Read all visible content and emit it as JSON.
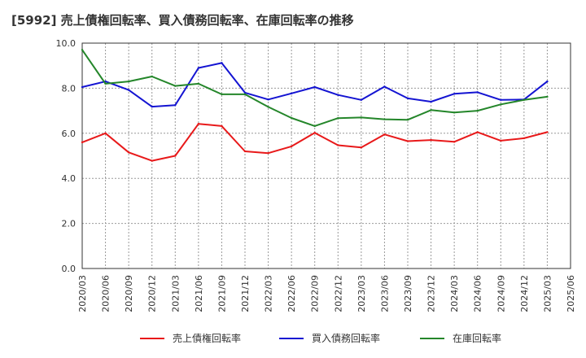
{
  "chart_data": {
    "type": "line",
    "title": "[5992]  売上債権回転率、買入債務回転率、在庫回転率の推移",
    "xlabel": "",
    "ylabel": "",
    "ylim": [
      0,
      10
    ],
    "yticks": [
      "0.0",
      "2.0",
      "4.0",
      "6.0",
      "8.0",
      "10.0"
    ],
    "grid": true,
    "legend_position": "bottom",
    "categories": [
      "2020/03",
      "2020/06",
      "2020/09",
      "2020/12",
      "2021/03",
      "2021/06",
      "2021/09",
      "2021/12",
      "2022/03",
      "2022/06",
      "2022/09",
      "2022/12",
      "2023/03",
      "2023/06",
      "2023/09",
      "2023/12",
      "2024/03",
      "2024/06",
      "2024/09",
      "2024/12",
      "2025/03",
      "2025/06"
    ],
    "series": [
      {
        "name": "売上債権回転率",
        "color": "#e8191a",
        "values": [
          5.6,
          6.0,
          5.15,
          4.78,
          5.0,
          6.42,
          6.32,
          5.2,
          5.12,
          5.42,
          6.02,
          5.47,
          5.37,
          5.95,
          5.65,
          5.7,
          5.62,
          6.05,
          5.67,
          5.78,
          6.05,
          null
        ]
      },
      {
        "name": "買入債務回転率",
        "color": "#1414d2",
        "values": [
          8.05,
          8.3,
          7.92,
          7.18,
          7.25,
          8.9,
          9.12,
          7.8,
          7.5,
          7.77,
          8.05,
          7.7,
          7.48,
          8.07,
          7.55,
          7.4,
          7.75,
          7.82,
          7.48,
          7.5,
          8.3,
          null
        ]
      },
      {
        "name": "在庫回転率",
        "color": "#24862a",
        "values": [
          9.7,
          8.2,
          8.3,
          8.52,
          8.1,
          8.2,
          7.73,
          7.73,
          7.17,
          6.68,
          6.32,
          6.67,
          6.7,
          6.62,
          6.6,
          7.03,
          6.92,
          7.0,
          7.28,
          7.48,
          7.62,
          null
        ]
      }
    ]
  }
}
